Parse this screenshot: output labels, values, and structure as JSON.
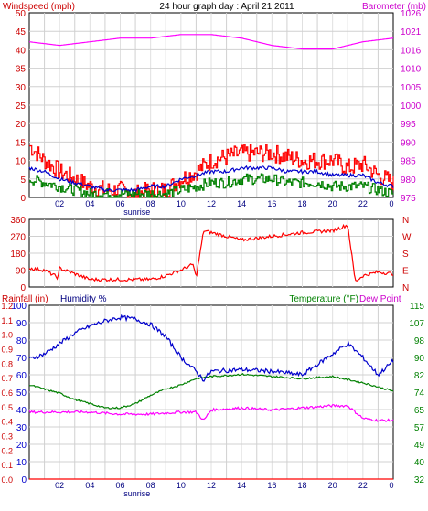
{
  "title": "24 hour graph day : April 21 2011",
  "colors": {
    "red": "#ff0000",
    "darkred": "#cc0000",
    "magenta": "#ff00ff",
    "blue": "#0000cc",
    "green": "#008000",
    "grid": "#cccccc",
    "navy": "#000080"
  },
  "chart_data": [
    {
      "type": "line",
      "left_axis_label": "Windspeed (mph)",
      "right_axis_label": "Barometer (mb)",
      "left_ticks": [
        "0",
        "5",
        "10",
        "15",
        "20",
        "25",
        "30",
        "35",
        "40",
        "45",
        "50"
      ],
      "right_ticks": [
        "975",
        "980",
        "985",
        "990",
        "995",
        "1000",
        "1005",
        "1010",
        "1016",
        "1021",
        "1026"
      ],
      "x_ticks": [
        "02",
        "04",
        "06",
        "08",
        "10",
        "12",
        "14",
        "16",
        "18",
        "20",
        "22"
      ],
      "x_last_tick": "0",
      "x_annotation": "sunrise",
      "ylim_left": [
        0,
        50
      ],
      "ylim_right": [
        975,
        1026
      ],
      "series": [
        {
          "name": "Windspeed (mph)",
          "color": "#ff0000",
          "axis": "left",
          "x": [
            0,
            1,
            2,
            3,
            4,
            5,
            6,
            7,
            8,
            9,
            10,
            11,
            12,
            13,
            14,
            15,
            16,
            17,
            18,
            19,
            20,
            21,
            22,
            23,
            24
          ],
          "y": [
            14,
            10,
            7,
            5,
            3,
            2,
            2,
            1,
            2,
            2,
            5,
            7,
            10,
            11,
            12,
            12,
            12,
            11,
            10,
            10,
            10,
            8,
            9,
            6,
            4
          ]
        },
        {
          "name": "Wind avg",
          "color": "#0000cc",
          "axis": "left",
          "x": [
            0,
            1,
            2,
            3,
            4,
            5,
            6,
            7,
            8,
            9,
            10,
            11,
            12,
            13,
            14,
            15,
            16,
            17,
            18,
            19,
            20,
            21,
            22,
            23,
            24
          ],
          "y": [
            8,
            7,
            5,
            4,
            3,
            2,
            2,
            2,
            3,
            3,
            5,
            6,
            7,
            7,
            8,
            8,
            8,
            7,
            7,
            7,
            6,
            6,
            6,
            4,
            3
          ]
        },
        {
          "name": "Wind gust low",
          "color": "#008000",
          "axis": "left",
          "x": [
            0,
            1,
            2,
            3,
            4,
            5,
            6,
            7,
            8,
            9,
            10,
            11,
            12,
            13,
            14,
            15,
            16,
            17,
            18,
            19,
            20,
            21,
            22,
            23,
            24
          ],
          "y": [
            5,
            4,
            3,
            2,
            1,
            1,
            1,
            1,
            1,
            1,
            2,
            3,
            4,
            4,
            5,
            5,
            5,
            4,
            4,
            4,
            3,
            3,
            3,
            2,
            1
          ]
        },
        {
          "name": "Barometer (mb)",
          "color": "#ff00ff",
          "axis": "right",
          "x": [
            0,
            2,
            4,
            6,
            8,
            10,
            12,
            14,
            16,
            18,
            20,
            22,
            24
          ],
          "y": [
            1018,
            1017,
            1018,
            1019,
            1019,
            1020,
            1020,
            1019,
            1017,
            1016,
            1016,
            1018,
            1019
          ]
        }
      ]
    },
    {
      "type": "line",
      "left_ticks": [
        "0",
        "90",
        "180",
        "270",
        "360"
      ],
      "right_ticks": [
        "N",
        "E",
        "S",
        "W",
        "N"
      ],
      "ylim": [
        0,
        360
      ],
      "series": [
        {
          "name": "Wind direction",
          "color": "#ff0000",
          "x": [
            0,
            1,
            1.9,
            2,
            4,
            6,
            8,
            9,
            10,
            10.8,
            11,
            11.5,
            12,
            14,
            16,
            18,
            20,
            21,
            21.5,
            22,
            23,
            24
          ],
          "y": [
            100,
            90,
            50,
            100,
            40,
            40,
            40,
            60,
            90,
            120,
            50,
            300,
            290,
            250,
            270,
            290,
            300,
            330,
            30,
            60,
            80,
            70
          ]
        }
      ]
    },
    {
      "type": "line",
      "left_axis_label": "Rainfall (in)",
      "left_axis_label_2": "Humidity %",
      "right_axis_label": "Temperature (°F)",
      "right_axis_label_2": "Dew Point",
      "rain_ticks": [
        "0.0",
        "0.1",
        "0.2",
        "0.3",
        "0.4",
        "0.5",
        "0.6",
        "0.7",
        "0.8",
        "0.9",
        "1.0",
        "1.1",
        "1.2"
      ],
      "humidity_ticks": [
        "0",
        "10",
        "20",
        "30",
        "40",
        "50",
        "60",
        "70",
        "80",
        "90",
        "100"
      ],
      "right_ticks": [
        "32",
        "40",
        "49",
        "57",
        "65",
        "74",
        "82",
        "90",
        "98",
        "107",
        "115"
      ],
      "x_ticks": [
        "02",
        "04",
        "06",
        "08",
        "10",
        "12",
        "14",
        "16",
        "18",
        "20",
        "22"
      ],
      "x_last_tick": "0",
      "x_annotation": "sunrise",
      "ylim_humidity": [
        0,
        100
      ],
      "ylim_temp": [
        32,
        115
      ],
      "series": [
        {
          "name": "Humidity %",
          "color": "#0000cc",
          "x": [
            0,
            1,
            2,
            3,
            4,
            5,
            6,
            7,
            8,
            9,
            10,
            11,
            11.5,
            12,
            14,
            16,
            18,
            20,
            21,
            22,
            23,
            24
          ],
          "y": [
            69,
            72,
            78,
            84,
            88,
            91,
            93,
            92,
            89,
            82,
            70,
            62,
            57,
            62,
            63,
            62,
            60,
            72,
            78,
            70,
            60,
            68
          ]
        },
        {
          "name": "Temperature (°F)",
          "color": "#008000",
          "x": [
            0,
            1,
            2,
            3,
            4,
            5,
            6,
            7,
            8,
            9,
            10,
            11,
            12,
            14,
            16,
            18,
            20,
            22,
            24
          ],
          "y": [
            77,
            75,
            73,
            70,
            68,
            66,
            66,
            68,
            72,
            75,
            77,
            80,
            81,
            82,
            81,
            80,
            81,
            78,
            74
          ]
        },
        {
          "name": "Dew Point",
          "color": "#ff00ff",
          "x": [
            0,
            2,
            4,
            6,
            8,
            10,
            11,
            11.5,
            12,
            14,
            16,
            18,
            20,
            21,
            22,
            23,
            24
          ],
          "y": [
            64,
            64,
            64,
            63,
            63,
            64,
            64,
            60,
            65,
            66,
            65,
            66,
            67,
            67,
            61,
            60,
            60
          ]
        },
        {
          "name": "Rainfall (in)",
          "color": "#ff0000",
          "x": [
            0,
            24
          ],
          "y": [
            0,
            0
          ]
        }
      ]
    }
  ]
}
